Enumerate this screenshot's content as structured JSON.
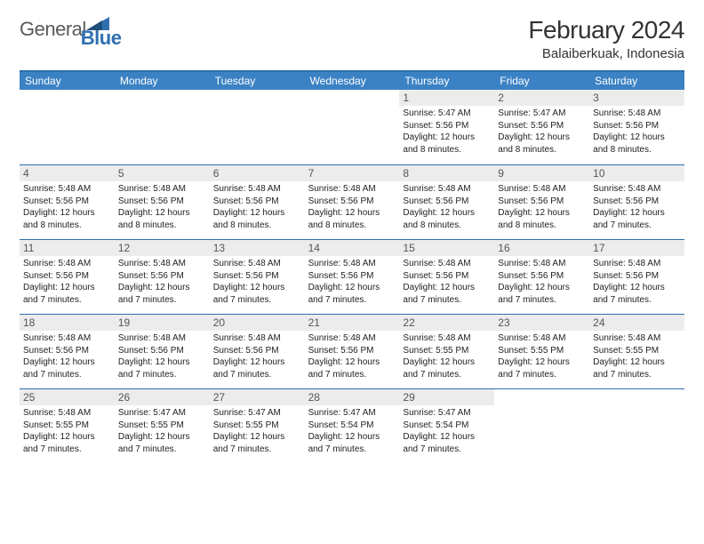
{
  "logo": {
    "text1": "General",
    "text2": "Blue",
    "text1_color": "#5a5a5a",
    "text2_color": "#2f6fb0"
  },
  "header": {
    "title": "February 2024",
    "location": "Balaiberkuak, Indonesia"
  },
  "colors": {
    "header_bar": "#3b82c4",
    "border": "#2f6fb0",
    "daynum_bg": "#ececec",
    "text": "#222222"
  },
  "weekdays": [
    "Sunday",
    "Monday",
    "Tuesday",
    "Wednesday",
    "Thursday",
    "Friday",
    "Saturday"
  ],
  "weeks": [
    [
      null,
      null,
      null,
      null,
      {
        "n": "1",
        "sr": "5:47 AM",
        "ss": "5:56 PM",
        "dl": "12 hours and 8 minutes."
      },
      {
        "n": "2",
        "sr": "5:47 AM",
        "ss": "5:56 PM",
        "dl": "12 hours and 8 minutes."
      },
      {
        "n": "3",
        "sr": "5:48 AM",
        "ss": "5:56 PM",
        "dl": "12 hours and 8 minutes."
      }
    ],
    [
      {
        "n": "4",
        "sr": "5:48 AM",
        "ss": "5:56 PM",
        "dl": "12 hours and 8 minutes."
      },
      {
        "n": "5",
        "sr": "5:48 AM",
        "ss": "5:56 PM",
        "dl": "12 hours and 8 minutes."
      },
      {
        "n": "6",
        "sr": "5:48 AM",
        "ss": "5:56 PM",
        "dl": "12 hours and 8 minutes."
      },
      {
        "n": "7",
        "sr": "5:48 AM",
        "ss": "5:56 PM",
        "dl": "12 hours and 8 minutes."
      },
      {
        "n": "8",
        "sr": "5:48 AM",
        "ss": "5:56 PM",
        "dl": "12 hours and 8 minutes."
      },
      {
        "n": "9",
        "sr": "5:48 AM",
        "ss": "5:56 PM",
        "dl": "12 hours and 8 minutes."
      },
      {
        "n": "10",
        "sr": "5:48 AM",
        "ss": "5:56 PM",
        "dl": "12 hours and 7 minutes."
      }
    ],
    [
      {
        "n": "11",
        "sr": "5:48 AM",
        "ss": "5:56 PM",
        "dl": "12 hours and 7 minutes."
      },
      {
        "n": "12",
        "sr": "5:48 AM",
        "ss": "5:56 PM",
        "dl": "12 hours and 7 minutes."
      },
      {
        "n": "13",
        "sr": "5:48 AM",
        "ss": "5:56 PM",
        "dl": "12 hours and 7 minutes."
      },
      {
        "n": "14",
        "sr": "5:48 AM",
        "ss": "5:56 PM",
        "dl": "12 hours and 7 minutes."
      },
      {
        "n": "15",
        "sr": "5:48 AM",
        "ss": "5:56 PM",
        "dl": "12 hours and 7 minutes."
      },
      {
        "n": "16",
        "sr": "5:48 AM",
        "ss": "5:56 PM",
        "dl": "12 hours and 7 minutes."
      },
      {
        "n": "17",
        "sr": "5:48 AM",
        "ss": "5:56 PM",
        "dl": "12 hours and 7 minutes."
      }
    ],
    [
      {
        "n": "18",
        "sr": "5:48 AM",
        "ss": "5:56 PM",
        "dl": "12 hours and 7 minutes."
      },
      {
        "n": "19",
        "sr": "5:48 AM",
        "ss": "5:56 PM",
        "dl": "12 hours and 7 minutes."
      },
      {
        "n": "20",
        "sr": "5:48 AM",
        "ss": "5:56 PM",
        "dl": "12 hours and 7 minutes."
      },
      {
        "n": "21",
        "sr": "5:48 AM",
        "ss": "5:56 PM",
        "dl": "12 hours and 7 minutes."
      },
      {
        "n": "22",
        "sr": "5:48 AM",
        "ss": "5:55 PM",
        "dl": "12 hours and 7 minutes."
      },
      {
        "n": "23",
        "sr": "5:48 AM",
        "ss": "5:55 PM",
        "dl": "12 hours and 7 minutes."
      },
      {
        "n": "24",
        "sr": "5:48 AM",
        "ss": "5:55 PM",
        "dl": "12 hours and 7 minutes."
      }
    ],
    [
      {
        "n": "25",
        "sr": "5:48 AM",
        "ss": "5:55 PM",
        "dl": "12 hours and 7 minutes."
      },
      {
        "n": "26",
        "sr": "5:47 AM",
        "ss": "5:55 PM",
        "dl": "12 hours and 7 minutes."
      },
      {
        "n": "27",
        "sr": "5:47 AM",
        "ss": "5:55 PM",
        "dl": "12 hours and 7 minutes."
      },
      {
        "n": "28",
        "sr": "5:47 AM",
        "ss": "5:54 PM",
        "dl": "12 hours and 7 minutes."
      },
      {
        "n": "29",
        "sr": "5:47 AM",
        "ss": "5:54 PM",
        "dl": "12 hours and 7 minutes."
      },
      null,
      null
    ]
  ],
  "labels": {
    "sunrise": "Sunrise:",
    "sunset": "Sunset:",
    "daylight": "Daylight:"
  }
}
